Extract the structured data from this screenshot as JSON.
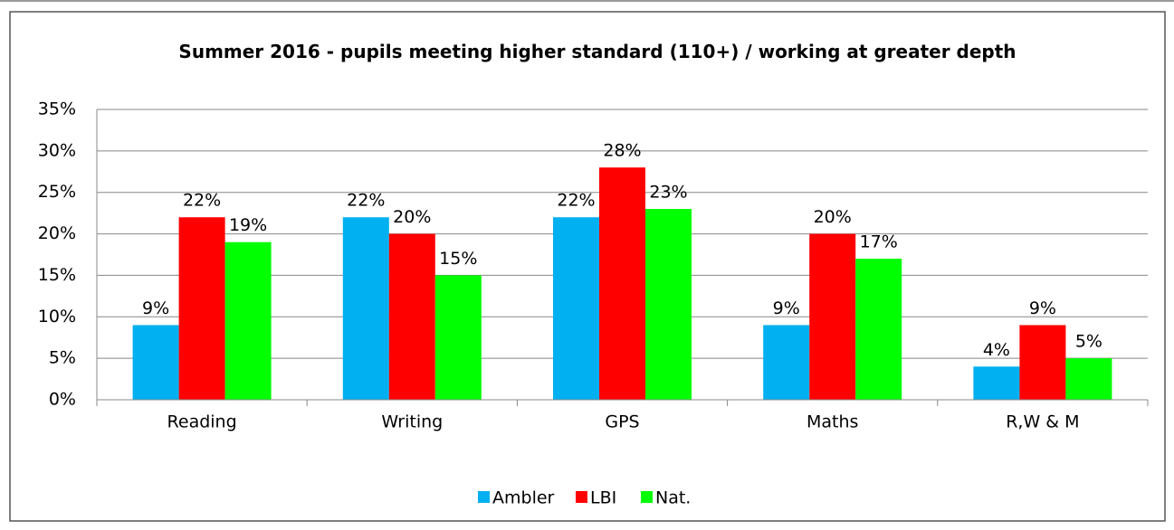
{
  "chart_data": {
    "type": "bar",
    "title": "Summer 2016 - pupils meeting higher standard (110+) / working at greater depth",
    "categories": [
      "Reading",
      "Writing",
      "GPS",
      "Maths",
      "R,W & M"
    ],
    "series": [
      {
        "name": "Ambler",
        "color": "#00b0f0",
        "values": [
          9,
          22,
          22,
          9,
          4
        ],
        "value_labels": [
          "9%",
          "22%",
          "22%",
          "9%",
          "4%"
        ]
      },
      {
        "name": "LBI",
        "color": "#ff0000",
        "values": [
          22,
          20,
          28,
          20,
          9
        ],
        "value_labels": [
          "22%",
          "20%",
          "28%",
          "20%",
          "9%"
        ]
      },
      {
        "name": "Nat.",
        "color": "#00ff00",
        "values": [
          19,
          15,
          23,
          17,
          5
        ],
        "value_labels": [
          "19%",
          "15%",
          "23%",
          "17%",
          "5%"
        ]
      }
    ],
    "ylim": [
      0,
      35
    ],
    "yticks": [
      {
        "value": 0,
        "label": "0%"
      },
      {
        "value": 5,
        "label": "5%"
      },
      {
        "value": 10,
        "label": "10%"
      },
      {
        "value": 15,
        "label": "15%"
      },
      {
        "value": 20,
        "label": "20%"
      },
      {
        "value": 25,
        "label": "25%"
      },
      {
        "value": 30,
        "label": "30%"
      },
      {
        "value": 35,
        "label": "35%"
      }
    ],
    "grid": true,
    "legend": "bottom"
  }
}
